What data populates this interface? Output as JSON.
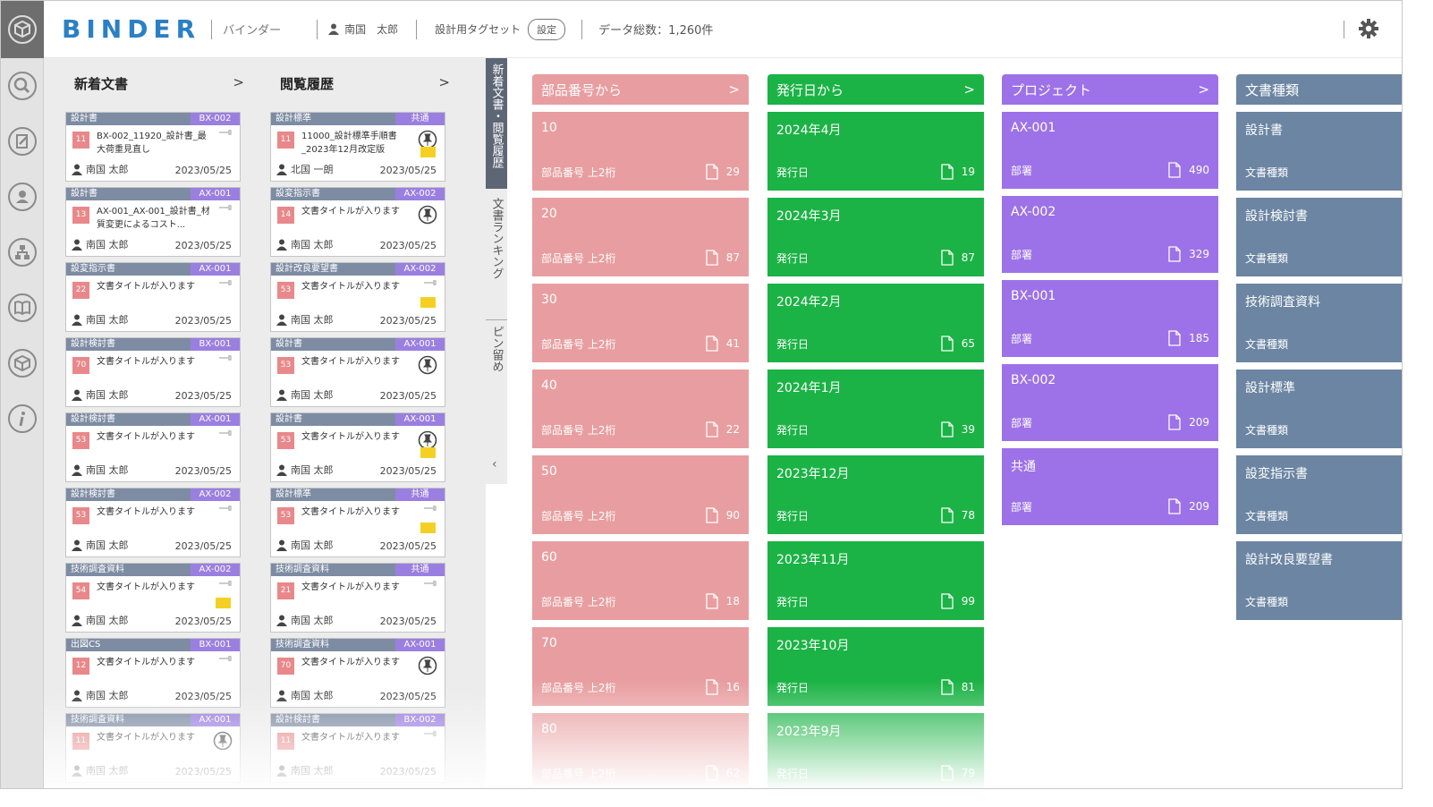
{
  "header": {
    "brand": "BINDER",
    "subtitle": "バインダー",
    "user": "南国　太郎",
    "tagset_label": "設計用タグセット",
    "settings_button": "設定",
    "total": "データ総数：1,260件"
  },
  "colors": {
    "accent": "#2b80c5",
    "parts": "#e89ea0",
    "date": "#1bb345",
    "project": "#9d72e8",
    "doctype": "#6b85a2"
  },
  "left": {
    "new_docs": {
      "title": "新着文書",
      "chevron": ">",
      "cards": [
        {
          "category": "設計書",
          "tag": "BX-002",
          "num": "11",
          "title": "BX-002_11920_設計書_最大荷重見直し",
          "user": "南国 太郎",
          "date": "2023/05/25"
        },
        {
          "category": "設計書",
          "tag": "AX-001",
          "num": "13",
          "title": "AX-001_AX-001_設計書_材質変更によるコスト...",
          "user": "南国 太郎",
          "date": "2023/05/25"
        },
        {
          "category": "設変指示書",
          "tag": "AX-001",
          "num": "22",
          "title": "文書タイトルが入ります",
          "user": "南国 太郎",
          "date": "2023/05/25"
        },
        {
          "category": "設計検討書",
          "tag": "BX-001",
          "num": "70",
          "title": "文書タイトルが入ります",
          "user": "南国 太郎",
          "date": "2023/05/25"
        },
        {
          "category": "設計検討書",
          "tag": "AX-001",
          "num": "53",
          "title": "文書タイトルが入ります",
          "user": "南国 太郎",
          "date": "2023/05/25"
        },
        {
          "category": "設計検討書",
          "tag": "AX-002",
          "num": "53",
          "title": "文書タイトルが入ります",
          "user": "南国 太郎",
          "date": "2023/05/25"
        },
        {
          "category": "技術調査資料",
          "tag": "AX-002",
          "num": "54",
          "title": "文書タイトルが入ります",
          "user": "南国 太郎",
          "date": "2023/05/25",
          "sticky": true
        },
        {
          "category": "出図CS",
          "tag": "BX-001",
          "num": "12",
          "title": "文書タイトルが入ります",
          "user": "南国 太郎",
          "date": "2023/05/25"
        },
        {
          "category": "技術調査資料",
          "tag": "AX-001",
          "num": "11",
          "title": "文書タイトルが入ります",
          "user": "南国 太郎",
          "date": "2023/05/25",
          "pinned": true
        }
      ]
    },
    "history": {
      "title": "閲覧履歴",
      "chevron": ">",
      "cards": [
        {
          "category": "設計標準",
          "tag": "共通",
          "num": "11",
          "title": "11000_設計標準手順書_2023年12月改定版",
          "user": "北国 一朗",
          "date": "2023/05/25",
          "pinned": true,
          "sticky": true
        },
        {
          "category": "設変指示書",
          "tag": "AX-002",
          "num": "14",
          "title": "文書タイトルが入ります",
          "user": "南国 太郎",
          "date": "2023/05/25",
          "pinned": true
        },
        {
          "category": "設計改良要望書",
          "tag": "AX-002",
          "num": "53",
          "title": "文書タイトルが入ります",
          "user": "南国 太郎",
          "date": "2023/05/25",
          "sticky": true
        },
        {
          "category": "設計書",
          "tag": "AX-001",
          "num": "53",
          "title": "文書タイトルが入ります",
          "user": "南国 太郎",
          "date": "2023/05/25",
          "pinned": true
        },
        {
          "category": "設計書",
          "tag": "AX-001",
          "num": "53",
          "title": "文書タイトルが入ります",
          "user": "南国 太郎",
          "date": "2023/05/25",
          "pinned": true,
          "sticky": true
        },
        {
          "category": "設計標準",
          "tag": "共通",
          "num": "53",
          "title": "文書タイトルが入ります",
          "user": "南国 太郎",
          "date": "2023/05/25",
          "sticky": true
        },
        {
          "category": "技術調査資料",
          "tag": "共通",
          "num": "21",
          "title": "文書タイトルが入ります",
          "user": "南国 太郎",
          "date": "2023/05/25"
        },
        {
          "category": "技術調査資料",
          "tag": "AX-001",
          "num": "70",
          "title": "文書タイトルが入ります",
          "user": "南国 太郎",
          "date": "2023/05/25",
          "pinned": true
        },
        {
          "category": "設計検討書",
          "tag": "BX-002",
          "num": "11",
          "title": "文書タイトルが入ります",
          "user": "南国 太郎",
          "date": "2023/05/25"
        }
      ]
    }
  },
  "vtabs": [
    "新着文書・閲覧履歴",
    "文書ランキング",
    "ピン留め"
  ],
  "groups": [
    {
      "title": "部品番号から",
      "chevron": ">",
      "color": "#e89ea0",
      "tiles": [
        {
          "title": "10",
          "label": "部品番号 上2桁",
          "count": "29"
        },
        {
          "title": "20",
          "label": "部品番号 上2桁",
          "count": "87"
        },
        {
          "title": "30",
          "label": "部品番号 上2桁",
          "count": "41"
        },
        {
          "title": "40",
          "label": "部品番号 上2桁",
          "count": "22"
        },
        {
          "title": "50",
          "label": "部品番号 上2桁",
          "count": "90"
        },
        {
          "title": "60",
          "label": "部品番号 上2桁",
          "count": "18"
        },
        {
          "title": "70",
          "label": "部品番号 上2桁",
          "count": "16"
        },
        {
          "title": "80",
          "label": "部品番号 上2桁",
          "count": "62"
        }
      ]
    },
    {
      "title": "発行日から",
      "chevron": ">",
      "color": "#1bb345",
      "tiles": [
        {
          "title": "2024年4月",
          "label": "発行日",
          "count": "19"
        },
        {
          "title": "2024年3月",
          "label": "発行日",
          "count": "87"
        },
        {
          "title": "2024年2月",
          "label": "発行日",
          "count": "65"
        },
        {
          "title": "2024年1月",
          "label": "発行日",
          "count": "39"
        },
        {
          "title": "2023年12月",
          "label": "発行日",
          "count": "78"
        },
        {
          "title": "2023年11月",
          "label": "発行日",
          "count": "99"
        },
        {
          "title": "2023年10月",
          "label": "発行日",
          "count": "81"
        },
        {
          "title": "2023年9月",
          "label": "発行日",
          "count": "79"
        }
      ]
    },
    {
      "title": "プロジェクト",
      "chevron": ">",
      "color": "#9d72e8",
      "tiles": [
        {
          "title": "AX-001",
          "label": "部署",
          "count": "490"
        },
        {
          "title": "AX-002",
          "label": "部署",
          "count": "329"
        },
        {
          "title": "BX-001",
          "label": "部署",
          "count": "185"
        },
        {
          "title": "BX-002",
          "label": "部署",
          "count": "209"
        },
        {
          "title": "共通",
          "label": "部署",
          "count": "209"
        }
      ]
    },
    {
      "title": "文書種類",
      "chevron": "",
      "color": "#6b85a2",
      "tiles": [
        {
          "title": "設計書",
          "label": "文書種類",
          "count": ""
        },
        {
          "title": "設計検討書",
          "label": "文書種類",
          "count": ""
        },
        {
          "title": "技術調査資料",
          "label": "文書種類",
          "count": ""
        },
        {
          "title": "設計標準",
          "label": "文書種類",
          "count": ""
        },
        {
          "title": "設変指示書",
          "label": "文書種類",
          "count": ""
        },
        {
          "title": "設計改良要望書",
          "label": "文書種類",
          "count": ""
        }
      ]
    }
  ]
}
